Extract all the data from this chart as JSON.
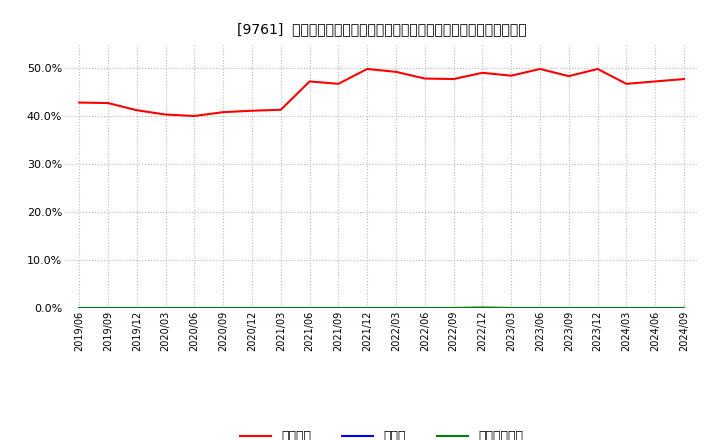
{
  "title": "[9761]  自己資本、のれん、繰延税金資産の総資産に対する比率の推移",
  "x_labels": [
    "2019/06",
    "2019/09",
    "2019/12",
    "2020/03",
    "2020/06",
    "2020/09",
    "2020/12",
    "2021/03",
    "2021/06",
    "2021/09",
    "2021/12",
    "2022/03",
    "2022/06",
    "2022/09",
    "2022/12",
    "2023/03",
    "2023/06",
    "2023/09",
    "2023/12",
    "2024/03",
    "2024/06",
    "2024/09"
  ],
  "equity_ratio": [
    0.428,
    0.427,
    0.412,
    0.403,
    0.4,
    0.408,
    0.411,
    0.413,
    0.472,
    0.467,
    0.498,
    0.492,
    0.478,
    0.477,
    0.49,
    0.484,
    0.498,
    0.483,
    0.498,
    0.467,
    0.472,
    0.477
  ],
  "goodwill_ratio": [
    0.0,
    0.0,
    0.0,
    0.0,
    0.0,
    0.0,
    0.0,
    0.0,
    0.0,
    0.0,
    0.0,
    0.0,
    0.0,
    0.0,
    0.0,
    0.0,
    0.0,
    0.0,
    0.0,
    0.0,
    0.0,
    0.0
  ],
  "deferred_tax_ratio": [
    0.0,
    0.0,
    0.0,
    0.0,
    0.0,
    0.0,
    0.0,
    0.0,
    0.0,
    0.0,
    0.0,
    0.0,
    0.0,
    0.0,
    0.001,
    0.0,
    0.0,
    0.0,
    0.0,
    0.0,
    0.0,
    0.0
  ],
  "equity_color": "#ff0000",
  "goodwill_color": "#0000ff",
  "deferred_tax_color": "#008000",
  "background_color": "#ffffff",
  "plot_bg_color": "#f0f0f0",
  "grid_color": "#bbbbbb",
  "ylim": [
    0.0,
    0.55
  ],
  "yticks": [
    0.0,
    0.1,
    0.2,
    0.3,
    0.4,
    0.5
  ],
  "legend_labels": [
    "自己資本",
    "のれん",
    "繰延税金資産"
  ]
}
